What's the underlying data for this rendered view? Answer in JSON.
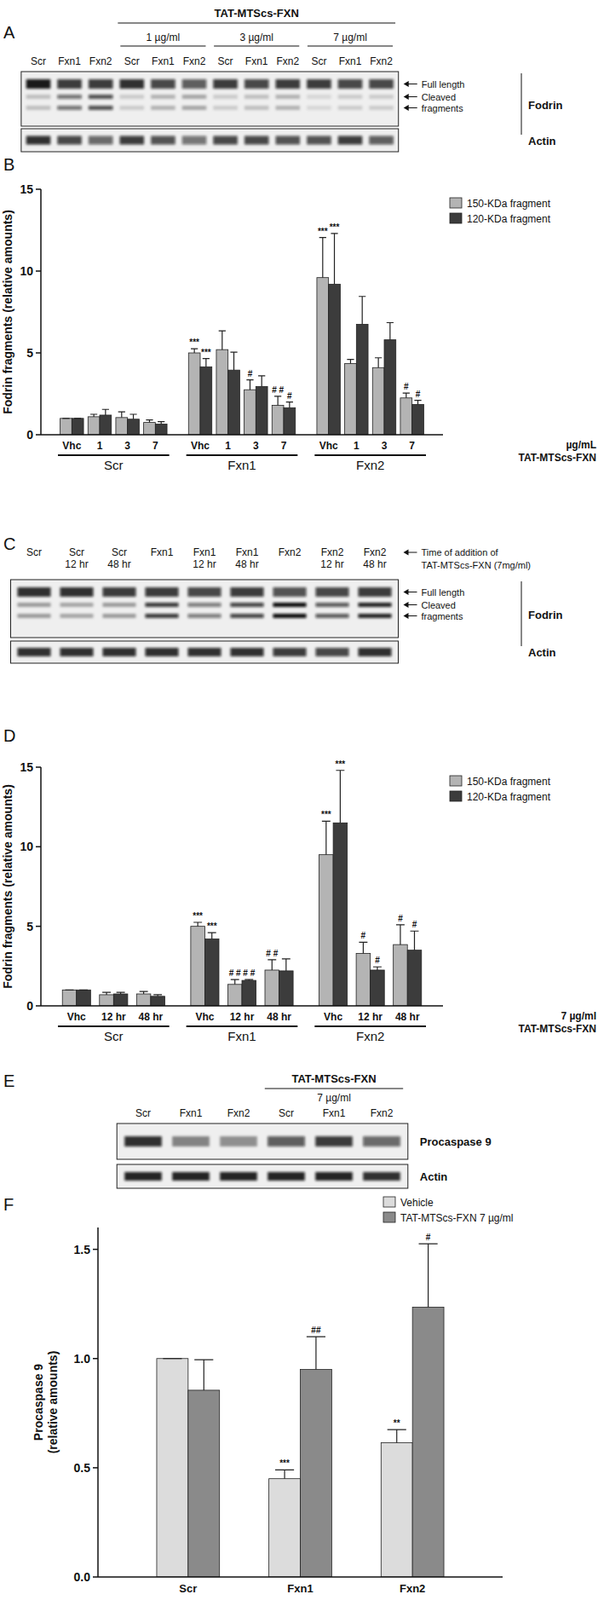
{
  "chart_data": [
    {
      "type": "bar",
      "panel_label": "B",
      "y_label": "Fodrin fragments (relative amounts)",
      "categories": [
        "Vhc",
        "1",
        "3",
        "7",
        "Vhc",
        "1",
        "3",
        "7",
        "Vhc",
        "1",
        "3",
        "7"
      ],
      "groups": [
        "Scr",
        "Fxn1",
        "Fxn2"
      ],
      "x_label_lines": [
        "µg/mL",
        "TAT-MTScs-FXN"
      ],
      "ylim": [
        0,
        15
      ],
      "yticks": [
        0,
        5,
        10,
        15
      ],
      "legend": "top-right",
      "series": [
        {
          "name": "150-KDa fragment",
          "color": "#b4b4b4",
          "values": [
            1,
            1.1,
            1.05,
            0.75,
            5.0,
            5.2,
            2.75,
            1.8,
            9.6,
            4.35,
            4.1,
            2.25
          ],
          "errors": [
            0,
            0.15,
            0.35,
            0.15,
            0.25,
            1.15,
            0.6,
            0.55,
            2.45,
            0.25,
            0.6,
            0.3
          ],
          "significance": [
            null,
            null,
            null,
            null,
            "***",
            null,
            "#",
            "# #",
            "***",
            null,
            null,
            "#"
          ]
        },
        {
          "name": "120-KDa fragment",
          "color": "#3c3c3c",
          "values": [
            1,
            1.2,
            0.95,
            0.65,
            4.15,
            3.95,
            2.95,
            1.65,
            9.2,
            6.75,
            5.8,
            1.85
          ],
          "errors": [
            0,
            0.35,
            0.3,
            0.15,
            0.5,
            1.1,
            0.65,
            0.35,
            3.1,
            1.7,
            1.05,
            0.25
          ],
          "significance": [
            null,
            null,
            null,
            null,
            "***",
            null,
            null,
            "#",
            "***",
            null,
            null,
            "#"
          ]
        }
      ]
    },
    {
      "type": "bar",
      "panel_label": "D",
      "y_label": "Fodrin fragments (relative amounts)",
      "categories": [
        "Vhc",
        "12 hr",
        "48 hr",
        "Vhc",
        "12 hr",
        "48 hr",
        "Vhc",
        "12 hr",
        "48 hr"
      ],
      "groups": [
        "Scr",
        "Fxn1",
        "Fxn2"
      ],
      "x_label_lines": [
        "7 µg/ml",
        "TAT-MTScs-FXN"
      ],
      "ylim": [
        0,
        15
      ],
      "yticks": [
        0,
        5,
        10,
        15
      ],
      "legend": "top-right",
      "series": [
        {
          "name": "150-KDa fragment",
          "color": "#b4b4b4",
          "values": [
            1,
            0.7,
            0.75,
            5.0,
            1.35,
            2.25,
            9.5,
            3.3,
            3.85
          ],
          "errors": [
            0,
            0.15,
            0.15,
            0.25,
            0.3,
            0.65,
            2.1,
            0.7,
            1.25
          ],
          "significance": [
            null,
            null,
            null,
            "***",
            "# #",
            "# #",
            "***",
            "#",
            "#"
          ]
        },
        {
          "name": "120-KDa fragment",
          "color": "#3c3c3c",
          "values": [
            1,
            0.75,
            0.6,
            4.2,
            1.6,
            2.2,
            11.5,
            2.25,
            3.5
          ],
          "errors": [
            0,
            0.1,
            0.1,
            0.4,
            0.05,
            0.75,
            3.3,
            0.2,
            1.2
          ],
          "significance": [
            null,
            null,
            null,
            "***",
            "# #",
            null,
            "***",
            "#",
            "#"
          ]
        }
      ]
    },
    {
      "type": "bar",
      "panel_label": "F",
      "y_label_lines": [
        "Procaspase 9",
        "(relative amounts)"
      ],
      "categories": [
        "Scr",
        "Fxn1",
        "Fxn2"
      ],
      "ylim": [
        0,
        1.6
      ],
      "yticks": [
        {
          "value": 0,
          "label": "0.0"
        },
        {
          "value": 0.5,
          "label": "0.5"
        },
        {
          "value": 1,
          "label": "1.0"
        },
        {
          "value": 1.5,
          "label": "1.5"
        }
      ],
      "legend": "top-right",
      "series": [
        {
          "name": "Vehicle",
          "color": "#dcdcdc",
          "values": [
            1.0,
            0.45,
            0.615
          ],
          "errors": [
            0,
            0.04,
            0.06
          ],
          "significance": [
            null,
            "***",
            "**"
          ]
        },
        {
          "name": "TAT-MTScs-FXN 7 µg/ml",
          "color": "#8a8a8a",
          "values": [
            0.855,
            0.95,
            1.235
          ],
          "errors": [
            0.14,
            0.15,
            0.29
          ],
          "significance": [
            null,
            "##",
            "#"
          ]
        }
      ]
    }
  ],
  "blots": [
    {
      "panel_label": "A",
      "header": "TAT-MTScs-FXN",
      "target": "Fodrin",
      "band_labels": [
        "Full length",
        "Cleaved",
        "fragments"
      ],
      "loading": "Actin",
      "groups": [
        {
          "lanes": [
            {
              "label": "Scr",
              "full_length": 0.95,
              "fragments": 0.2,
              "actin": 0.85
            },
            {
              "label": "Fxn1",
              "full_length": 0.8,
              "fragments": 0.55,
              "actin": 0.75
            },
            {
              "label": "Fxn2",
              "full_length": 0.8,
              "fragments": 0.7,
              "actin": 0.6
            }
          ]
        },
        {
          "label": "1 µg/ml",
          "lanes": [
            {
              "label": "Scr",
              "full_length": 0.85,
              "fragments": 0.15,
              "actin": 0.8
            },
            {
              "label": "Fxn1",
              "full_length": 0.75,
              "fragments": 0.25,
              "actin": 0.7
            },
            {
              "label": "Fxn2",
              "full_length": 0.65,
              "fragments": 0.3,
              "actin": 0.55
            }
          ]
        },
        {
          "label": "3 µg/ml",
          "lanes": [
            {
              "label": "Scr",
              "full_length": 0.8,
              "fragments": 0.15,
              "actin": 0.75
            },
            {
              "label": "Fxn1",
              "full_length": 0.75,
              "fragments": 0.2,
              "actin": 0.75
            },
            {
              "label": "Fxn2",
              "full_length": 0.8,
              "fragments": 0.25,
              "actin": 0.7
            }
          ]
        },
        {
          "label": "7 µg/ml",
          "lanes": [
            {
              "label": "Scr",
              "full_length": 0.8,
              "fragments": 0.1,
              "actin": 0.7
            },
            {
              "label": "Fxn1",
              "full_length": 0.75,
              "fragments": 0.15,
              "actin": 0.8
            },
            {
              "label": "Fxn2",
              "full_length": 0.75,
              "fragments": 0.15,
              "actin": 0.65
            }
          ]
        }
      ]
    },
    {
      "panel_label": "C",
      "note_lines": [
        "Time of addition of",
        "TAT-MTScs-FXN (7mg/ml)"
      ],
      "target": "Fodrin",
      "band_labels": [
        "Full length",
        "Cleaved",
        "fragments"
      ],
      "loading": "Actin",
      "lanes": [
        {
          "label": "Scr",
          "full_length": 0.85,
          "fragments": 0.35,
          "actin": 0.85
        },
        {
          "label": "Scr",
          "time": "12 hr",
          "full_length": 0.85,
          "fragments": 0.3,
          "actin": 0.85
        },
        {
          "label": "Scr",
          "time": "48 hr",
          "full_length": 0.8,
          "fragments": 0.35,
          "actin": 0.85
        },
        {
          "label": "Fxn1",
          "full_length": 0.8,
          "fragments": 0.8,
          "actin": 0.85
        },
        {
          "label": "Fxn1",
          "time": "12 hr",
          "full_length": 0.75,
          "fragments": 0.5,
          "actin": 0.85
        },
        {
          "label": "Fxn1",
          "time": "48 hr",
          "full_length": 0.8,
          "fragments": 0.75,
          "actin": 0.85
        },
        {
          "label": "Fxn2",
          "full_length": 0.7,
          "fragments": 1.0,
          "actin": 0.8
        },
        {
          "label": "Fxn2",
          "time": "12 hr",
          "full_length": 0.75,
          "fragments": 0.65,
          "actin": 0.75
        },
        {
          "label": "Fxn2",
          "time": "48 hr",
          "full_length": 0.8,
          "fragments": 0.9,
          "actin": 0.85
        }
      ]
    },
    {
      "panel_label": "E",
      "header": "TAT-MTScs-FXN",
      "target": "Procaspase 9",
      "loading": "Actin",
      "groups": [
        {
          "lanes": [
            {
              "label": "Scr",
              "target_band": 0.85,
              "actin": 0.9
            },
            {
              "label": "Fxn1",
              "target_band": 0.45,
              "actin": 0.9
            },
            {
              "label": "Fxn2",
              "target_band": 0.4,
              "actin": 0.9
            }
          ]
        },
        {
          "label": "7 µg/ml",
          "lanes": [
            {
              "label": "Scr",
              "target_band": 0.65,
              "actin": 0.9
            },
            {
              "label": "Fxn1",
              "target_band": 0.8,
              "actin": 0.9
            },
            {
              "label": "Fxn2",
              "target_band": 0.6,
              "actin": 0.85
            }
          ]
        }
      ]
    }
  ]
}
